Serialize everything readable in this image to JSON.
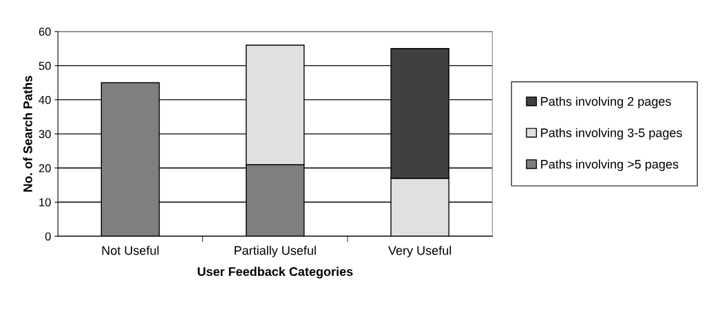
{
  "chart_data": {
    "type": "bar",
    "stacked": true,
    "xlabel": "User Feedback Categories",
    "ylabel": "No. of Search Paths",
    "categories": [
      "Not Useful",
      "Partially Useful",
      "Very Useful"
    ],
    "series": [
      {
        "name": "Paths involving >5 pages",
        "color": "#7f7f7f",
        "values": [
          45,
          21,
          null
        ]
      },
      {
        "name": "Paths involving 3-5 pages",
        "color": "#e0e0e0",
        "values": [
          null,
          35,
          17
        ]
      },
      {
        "name": "Paths involving 2 pages",
        "color": "#404040",
        "values": [
          null,
          null,
          38
        ]
      }
    ],
    "ylim": [
      0,
      60
    ],
    "yticks": [
      0,
      10,
      20,
      30,
      40,
      50,
      60
    ],
    "grid": "y",
    "legend": "right"
  }
}
